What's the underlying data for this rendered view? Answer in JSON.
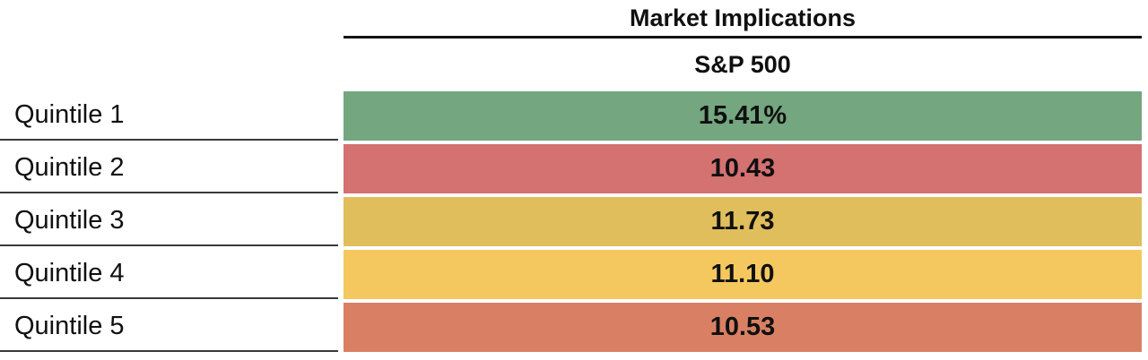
{
  "header": {
    "title": "Market Implications",
    "column": "S&P 500"
  },
  "rows": [
    {
      "label": "Quintile 1",
      "value": "15.41%",
      "color": "#74A680"
    },
    {
      "label": "Quintile 2",
      "value": "10.43",
      "color": "#D47171"
    },
    {
      "label": "Quintile 3",
      "value": "11.73",
      "color": "#E0BE5C"
    },
    {
      "label": "Quintile 4",
      "value": "11.10",
      "color": "#F5C75F"
    },
    {
      "label": "Quintile 5",
      "value": "10.53",
      "color": "#D98064"
    }
  ],
  "chart_data": {
    "type": "table",
    "title": "Market Implications",
    "column_header": "S&P 500",
    "categories": [
      "Quintile 1",
      "Quintile 2",
      "Quintile 3",
      "Quintile 4",
      "Quintile 5"
    ],
    "values": [
      15.41,
      10.43,
      11.73,
      11.1,
      10.53
    ],
    "values_display": [
      "15.41%",
      "10.43",
      "11.73",
      "11.10",
      "10.53"
    ],
    "cell_colors": [
      "#74A680",
      "#D47171",
      "#E0BE5C",
      "#F5C75F",
      "#D98064"
    ],
    "layout": "single-column heatmap table; row labels on left with underlines; values centered on colored cell backgrounds"
  }
}
